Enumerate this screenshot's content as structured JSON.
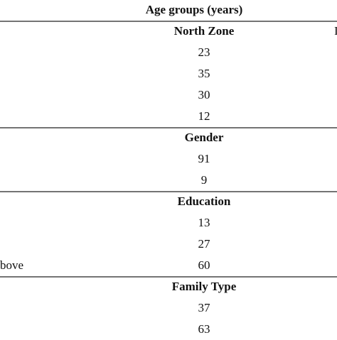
{
  "header": "Age groups (years)",
  "edge_text": "I",
  "sections": [
    {
      "title": "North Zone",
      "rows": [
        {
          "value": 23
        },
        {
          "value": 35
        },
        {
          "value": 30
        },
        {
          "value": 12
        }
      ]
    },
    {
      "title": "Gender",
      "rows": [
        {
          "value": 91
        },
        {
          "value": 9
        }
      ]
    },
    {
      "title": "Education",
      "rows": [
        {
          "value": 13
        },
        {
          "value": 27
        },
        {
          "label": "bove",
          "value": 60
        }
      ]
    },
    {
      "title": "Family Type",
      "rows": [
        {
          "value": 37
        },
        {
          "value": 63
        }
      ]
    }
  ]
}
